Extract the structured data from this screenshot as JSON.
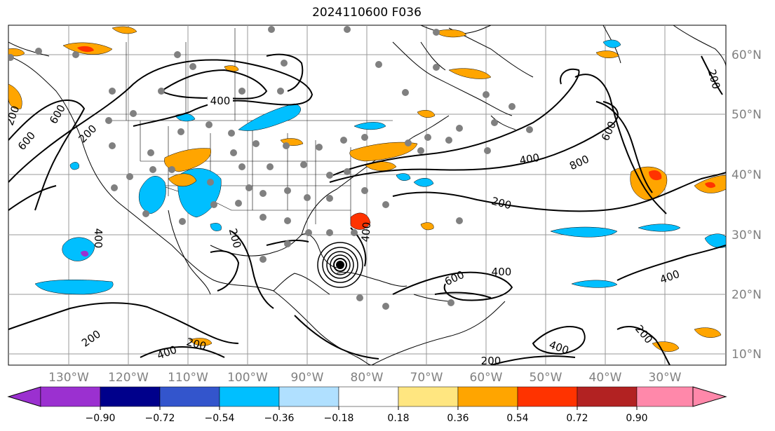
{
  "title": "2024110600 F036",
  "map": {
    "lat_labels": [
      "60°N",
      "50°N",
      "40°N",
      "30°N",
      "20°N",
      "10°N"
    ],
    "lon_labels": [
      "130°W",
      "120°W",
      "110°W",
      "100°W",
      "90°W",
      "80°W",
      "70°W",
      "60°W",
      "50°W",
      "40°W",
      "30°W"
    ],
    "contour_labels": [
      "400",
      "600",
      "200",
      "600",
      "200",
      "400",
      "600",
      "800",
      "400",
      "200",
      "200",
      "400",
      "600",
      "400",
      "200",
      "400",
      "200",
      "400",
      "200",
      "400",
      "200",
      "200"
    ]
  },
  "colorbar": {
    "tick_labels": [
      "−0.90",
      "−0.72",
      "−0.54",
      "−0.36",
      "−0.18",
      "0.18",
      "0.36",
      "0.54",
      "0.72",
      "0.90"
    ],
    "colors": [
      "#9b30d0",
      "#00008b",
      "#3355cc",
      "#00bfff",
      "#b0e0ff",
      "#ffffff",
      "#ffe680",
      "#ffa500",
      "#ff3300",
      "#b22222",
      "#ff88aa"
    ]
  },
  "icons": {
    "station": "gray-dot",
    "hurricane": "concentric-circles"
  }
}
